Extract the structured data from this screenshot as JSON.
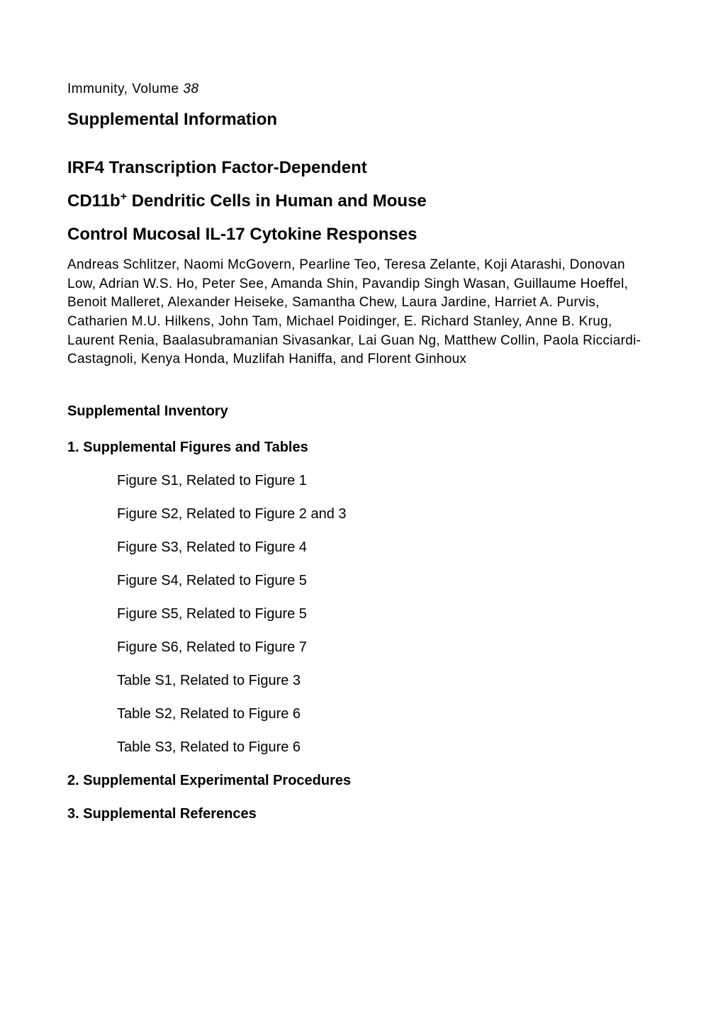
{
  "journal": {
    "name": "Immunity, Volume ",
    "volume": "38"
  },
  "suppInfo": "Supplemental Information",
  "title": {
    "line1": "IRF4 Transcription Factor-Dependent",
    "line2_pre": "CD11b",
    "line2_sup": "+",
    "line2_post": " Dendritic Cells in Human and Mouse",
    "line3": "Control Mucosal IL-17 Cytokine Responses"
  },
  "authors": "Andreas Schlitzer, Naomi McGovern, Pearline Teo, Teresa Zelante, Koji Atarashi, Donovan Low, Adrian W.S. Ho, Peter See, Amanda Shin, Pavandip Singh Wasan, Guillaume Hoeffel, Benoit Malleret, Alexander Heiseke, Samantha Chew, Laura Jardine, Harriet A. Purvis, Catharien M.U. Hilkens, John Tam, Michael Poidinger, E. Richard Stanley, Anne B. Krug, Laurent Renia, Baalasubramanian Sivasankar, Lai Guan Ng, Matthew Collin, Paola Ricciardi-Castagnoli, Kenya Honda, Muzlifah Haniffa, and Florent Ginhoux",
  "inventory": {
    "heading": "Supplemental Inventory",
    "section1": {
      "heading": "1. Supplemental Figures and Tables",
      "items": [
        "Figure S1, Related to Figure 1",
        "Figure S2, Related to Figure 2 and 3",
        "Figure S3, Related to Figure 4",
        "Figure S4, Related to Figure 5",
        "Figure S5, Related to Figure 5",
        "Figure S6, Related to Figure 7",
        "Table S1, Related to Figure 3",
        "Table S2, Related to Figure 6",
        "Table S3, Related to Figure 6"
      ]
    },
    "section2": "2. Supplemental Experimental Procedures",
    "section3": "3. Supplemental References"
  }
}
